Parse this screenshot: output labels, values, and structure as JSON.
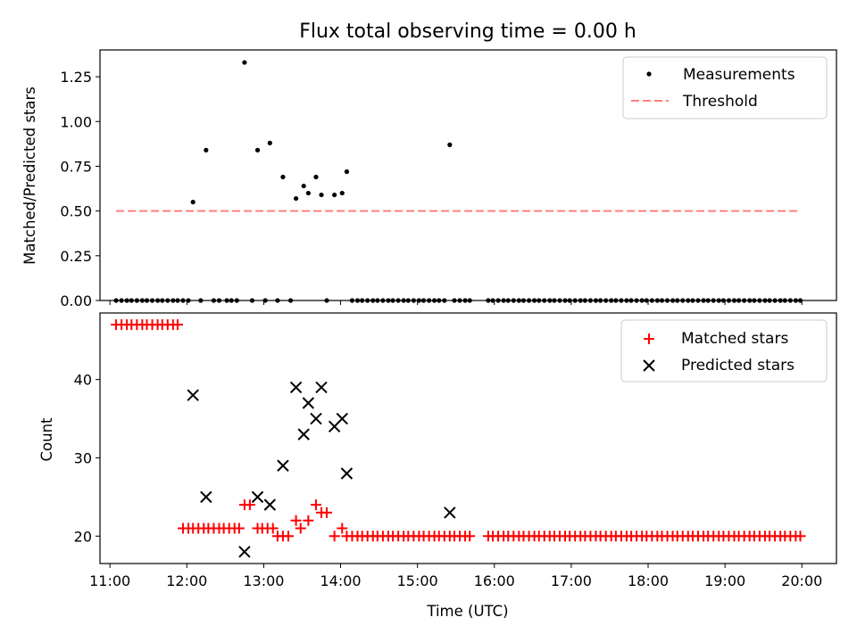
{
  "figure": {
    "title": "Flux total observing time = 0.00 h"
  },
  "colors": {
    "measurements": "#000000",
    "threshold": "#ff7f7f",
    "matched": "#ff0000",
    "predicted": "#000000"
  },
  "chart_data": [
    {
      "type": "scatter",
      "title": "Flux total observing time = 0.00 h",
      "xlabel": "",
      "ylabel": "Matched/Predicted stars",
      "xlim": [
        10.87,
        20.45
      ],
      "ylim": [
        0.0,
        1.4
      ],
      "yticks": [
        "0.00",
        "0.25",
        "0.50",
        "0.75",
        "1.00",
        "1.25"
      ],
      "legend": "top-right",
      "series": [
        {
          "name": "Measurements",
          "style": "point",
          "x": [
            11.08,
            11.15,
            11.22,
            11.28,
            11.35,
            11.42,
            11.48,
            11.55,
            11.62,
            11.68,
            11.75,
            11.82,
            11.88,
            11.95,
            12.02,
            12.08,
            12.18,
            12.25,
            12.35,
            12.42,
            12.52,
            12.58,
            12.65,
            12.75,
            12.85,
            12.92,
            13.02,
            13.08,
            13.18,
            13.25,
            13.35,
            13.42,
            13.52,
            13.58,
            13.68,
            13.75,
            13.82,
            13.92,
            14.02,
            14.08,
            14.15,
            14.22,
            14.28,
            14.35,
            14.42,
            14.48,
            14.55,
            14.62,
            14.68,
            14.75,
            14.82,
            14.88,
            14.95,
            15.02,
            15.08,
            15.15,
            15.22,
            15.28,
            15.35,
            15.42,
            15.48,
            15.55,
            15.62,
            15.68,
            15.92,
            15.98,
            16.05,
            16.12,
            16.18,
            16.25,
            16.32,
            16.38,
            16.45,
            16.52,
            16.58,
            16.65,
            16.72,
            16.78,
            16.85,
            16.92,
            16.98,
            17.05,
            17.12,
            17.18,
            17.25,
            17.32,
            17.38,
            17.45,
            17.52,
            17.58,
            17.65,
            17.72,
            17.78,
            17.85,
            17.92,
            17.98,
            18.05,
            18.12,
            18.18,
            18.25,
            18.32,
            18.38,
            18.45,
            18.52,
            18.58,
            18.65,
            18.72,
            18.78,
            18.85,
            18.92,
            18.98,
            19.05,
            19.12,
            19.18,
            19.25,
            19.32,
            19.38,
            19.45,
            19.52,
            19.58,
            19.65,
            19.72,
            19.78,
            19.85,
            19.92,
            19.98
          ],
          "y": [
            0,
            0,
            0,
            0,
            0,
            0,
            0,
            0,
            0,
            0,
            0,
            0,
            0,
            0,
            0,
            0.55,
            0,
            0.84,
            0,
            0,
            0,
            0,
            0,
            1.33,
            0,
            0.84,
            0,
            0.88,
            0,
            0.69,
            0,
            0.57,
            0.64,
            0.6,
            0.69,
            0.59,
            0,
            0.59,
            0.6,
            0.72,
            0,
            0,
            0,
            0,
            0,
            0,
            0,
            0,
            0,
            0,
            0,
            0,
            0,
            0,
            0,
            0,
            0,
            0,
            0,
            0.87,
            0,
            0,
            0,
            0,
            0,
            0,
            0,
            0,
            0,
            0,
            0,
            0,
            0,
            0,
            0,
            0,
            0,
            0,
            0,
            0,
            0,
            0,
            0,
            0,
            0,
            0,
            0,
            0,
            0,
            0,
            0,
            0,
            0,
            0,
            0,
            0,
            0,
            0,
            0,
            0,
            0,
            0,
            0,
            0,
            0,
            0,
            0,
            0,
            0,
            0,
            0,
            0,
            0,
            0,
            0,
            0,
            0,
            0,
            0,
            0,
            0,
            0,
            0,
            0,
            0,
            0
          ]
        },
        {
          "name": "Threshold",
          "style": "dashed-line",
          "x": [
            11.08,
            19.98
          ],
          "y": [
            0.5,
            0.5
          ]
        }
      ]
    },
    {
      "type": "scatter",
      "title": "",
      "xlabel": "Time (UTC)",
      "ylabel": "Count",
      "xlim": [
        10.87,
        20.45
      ],
      "ylim": [
        16.5,
        48.5
      ],
      "xticks": [
        {
          "value": 11,
          "label": "11:00"
        },
        {
          "value": 12,
          "label": "12:00"
        },
        {
          "value": 13,
          "label": "13:00"
        },
        {
          "value": 14,
          "label": "14:00"
        },
        {
          "value": 15,
          "label": "15:00"
        },
        {
          "value": 16,
          "label": "16:00"
        },
        {
          "value": 17,
          "label": "17:00"
        },
        {
          "value": 18,
          "label": "18:00"
        },
        {
          "value": 19,
          "label": "19:00"
        },
        {
          "value": 20,
          "label": "20:00"
        }
      ],
      "yticks": [
        "20",
        "30",
        "40"
      ],
      "legend": "top-right",
      "series": [
        {
          "name": "Matched stars",
          "style": "plus",
          "x": [
            11.08,
            11.15,
            11.22,
            11.28,
            11.35,
            11.42,
            11.48,
            11.55,
            11.62,
            11.68,
            11.75,
            11.82,
            11.88,
            11.95,
            12.02,
            12.08,
            12.15,
            12.22,
            12.28,
            12.35,
            12.42,
            12.48,
            12.55,
            12.62,
            12.68,
            12.75,
            12.82,
            12.92,
            12.98,
            13.05,
            13.12,
            13.18,
            13.25,
            13.32,
            13.42,
            13.48,
            13.58,
            13.68,
            13.75,
            13.82,
            13.92,
            14.02,
            14.08,
            14.15,
            14.22,
            14.28,
            14.35,
            14.42,
            14.48,
            14.55,
            14.62,
            14.68,
            14.75,
            14.82,
            14.88,
            14.95,
            15.02,
            15.08,
            15.15,
            15.22,
            15.28,
            15.35,
            15.42,
            15.48,
            15.55,
            15.62,
            15.68,
            15.92,
            15.98,
            16.05,
            16.12,
            16.18,
            16.25,
            16.32,
            16.38,
            16.45,
            16.52,
            16.58,
            16.65,
            16.72,
            16.78,
            16.85,
            16.92,
            16.98,
            17.05,
            17.12,
            17.18,
            17.25,
            17.32,
            17.38,
            17.45,
            17.52,
            17.58,
            17.65,
            17.72,
            17.78,
            17.85,
            17.92,
            17.98,
            18.05,
            18.12,
            18.18,
            18.25,
            18.32,
            18.38,
            18.45,
            18.52,
            18.58,
            18.65,
            18.72,
            18.78,
            18.85,
            18.92,
            18.98,
            19.05,
            19.12,
            19.18,
            19.25,
            19.32,
            19.38,
            19.45,
            19.52,
            19.58,
            19.65,
            19.72,
            19.78,
            19.85,
            19.92,
            19.98
          ],
          "y": [
            47,
            47,
            47,
            47,
            47,
            47,
            47,
            47,
            47,
            47,
            47,
            47,
            47,
            21,
            21,
            21,
            21,
            21,
            21,
            21,
            21,
            21,
            21,
            21,
            21,
            24,
            24,
            21,
            21,
            21,
            21,
            20,
            20,
            20,
            22,
            21,
            22,
            24,
            23,
            23,
            20,
            21,
            20,
            20,
            20,
            20,
            20,
            20,
            20,
            20,
            20,
            20,
            20,
            20,
            20,
            20,
            20,
            20,
            20,
            20,
            20,
            20,
            20,
            20,
            20,
            20,
            20,
            20,
            20,
            20,
            20,
            20,
            20,
            20,
            20,
            20,
            20,
            20,
            20,
            20,
            20,
            20,
            20,
            20,
            20,
            20,
            20,
            20,
            20,
            20,
            20,
            20,
            20,
            20,
            20,
            20,
            20,
            20,
            20,
            20,
            20,
            20,
            20,
            20,
            20,
            20,
            20,
            20,
            20,
            20,
            20,
            20,
            20,
            20,
            20,
            20,
            20,
            20,
            20,
            20,
            20,
            20,
            20,
            20,
            20,
            20,
            20,
            20,
            20
          ]
        },
        {
          "name": "Predicted stars",
          "style": "x",
          "x": [
            12.08,
            12.25,
            12.75,
            12.92,
            13.08,
            13.25,
            13.42,
            13.52,
            13.58,
            13.68,
            13.75,
            13.92,
            14.02,
            14.08,
            15.42
          ],
          "y": [
            38,
            25,
            18,
            25,
            24,
            29,
            39,
            33,
            37,
            35,
            39,
            34,
            35,
            28,
            23
          ]
        }
      ]
    }
  ]
}
